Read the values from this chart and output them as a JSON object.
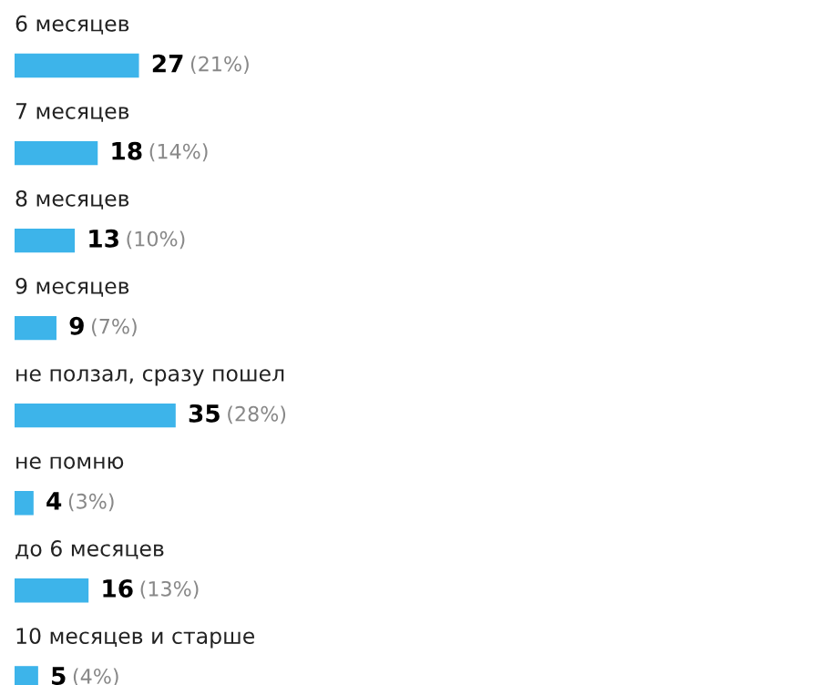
{
  "chart_data": {
    "type": "bar",
    "orientation": "horizontal",
    "categories": [
      "6 месяцев",
      "7 месяцев",
      "8 месяцев",
      "9 месяцев",
      "не ползал, сразу пошел",
      "не помню",
      "до 6 месяцев",
      "10 месяцев и старше"
    ],
    "values": [
      27,
      18,
      13,
      9,
      35,
      4,
      16,
      5
    ],
    "value_labels": [
      "27 (21%)",
      "18 (14%)",
      "13 (10%)",
      "9 (7%)",
      "35 (28%)",
      "4 (3%)",
      "16 (13%)",
      "5 (4%)"
    ],
    "color": "#3db4ea"
  }
}
